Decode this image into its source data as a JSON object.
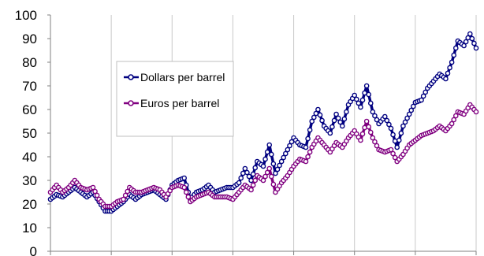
{
  "chart_data": {
    "type": "line",
    "title": "",
    "xlabel": "",
    "ylabel": "",
    "ylim": [
      0,
      100
    ],
    "y_ticks": [
      "0",
      "10",
      "20",
      "30",
      "40",
      "50",
      "60",
      "70",
      "80",
      "90",
      "100"
    ],
    "x_range": [
      0,
      7
    ],
    "x_ticks": [
      0,
      1,
      2,
      3,
      4,
      5,
      6,
      7
    ],
    "grid": "vertical",
    "legend_position": "upper-left",
    "series": [
      {
        "name": "Dollars per barrel",
        "color": "#000080",
        "x": [
          0.0,
          0.1,
          0.2,
          0.3,
          0.4,
          0.5,
          0.6,
          0.7,
          0.8,
          0.9,
          1.0,
          1.1,
          1.2,
          1.3,
          1.4,
          1.5,
          1.6,
          1.7,
          1.8,
          1.9,
          2.0,
          2.1,
          2.2,
          2.3,
          2.4,
          2.5,
          2.6,
          2.7,
          2.8,
          2.9,
          3.0,
          3.1,
          3.2,
          3.3,
          3.4,
          3.5,
          3.6,
          3.7,
          3.8,
          3.9,
          4.0,
          4.1,
          4.2,
          4.3,
          4.4,
          4.5,
          4.6,
          4.7,
          4.8,
          4.9,
          5.0,
          5.1,
          5.2,
          5.3,
          5.4,
          5.5,
          5.6,
          5.7,
          5.8,
          5.9,
          6.0,
          6.1,
          6.2,
          6.3,
          6.4,
          6.5,
          6.6,
          6.7,
          6.8,
          6.9,
          7.0
        ],
        "values": [
          22,
          24,
          23,
          25,
          27,
          25,
          23,
          25,
          21,
          17,
          17,
          19,
          21,
          24,
          22,
          24,
          25,
          26,
          24,
          22,
          28,
          30,
          31,
          22,
          25,
          26,
          28,
          25,
          26,
          27,
          27,
          29,
          35,
          30,
          38,
          36,
          45,
          33,
          38,
          43,
          48,
          45,
          44,
          55,
          60,
          53,
          50,
          58,
          53,
          62,
          66,
          61,
          70,
          59,
          54,
          57,
          52,
          44,
          53,
          58,
          63,
          64,
          69,
          72,
          75,
          73,
          80,
          89,
          87,
          92,
          86
        ]
      },
      {
        "name": "Euros per barrel",
        "color": "#800080",
        "x": [
          0.0,
          0.1,
          0.2,
          0.3,
          0.4,
          0.5,
          0.6,
          0.7,
          0.8,
          0.9,
          1.0,
          1.1,
          1.2,
          1.3,
          1.4,
          1.5,
          1.6,
          1.7,
          1.8,
          1.9,
          2.0,
          2.1,
          2.2,
          2.3,
          2.4,
          2.5,
          2.6,
          2.7,
          2.8,
          2.9,
          3.0,
          3.1,
          3.2,
          3.3,
          3.4,
          3.5,
          3.6,
          3.7,
          3.8,
          3.9,
          4.0,
          4.1,
          4.2,
          4.3,
          4.4,
          4.5,
          4.6,
          4.7,
          4.8,
          4.9,
          5.0,
          5.1,
          5.2,
          5.3,
          5.4,
          5.5,
          5.6,
          5.7,
          5.8,
          5.9,
          6.0,
          6.1,
          6.2,
          6.3,
          6.4,
          6.5,
          6.6,
          6.7,
          6.8,
          6.9,
          7.0
        ],
        "values": [
          25,
          28,
          25,
          27,
          30,
          27,
          26,
          27,
          22,
          19,
          19,
          21,
          22,
          27,
          25,
          25,
          26,
          27,
          26,
          23,
          27,
          28,
          27,
          21,
          23,
          24,
          25,
          23,
          23,
          23,
          22,
          25,
          28,
          26,
          32,
          30,
          35,
          25,
          29,
          32,
          36,
          39,
          38,
          44,
          48,
          45,
          42,
          46,
          44,
          48,
          51,
          47,
          55,
          48,
          43,
          42,
          43,
          38,
          41,
          45,
          47,
          49,
          50,
          51,
          53,
          51,
          54,
          59,
          58,
          62,
          59
        ]
      }
    ]
  }
}
